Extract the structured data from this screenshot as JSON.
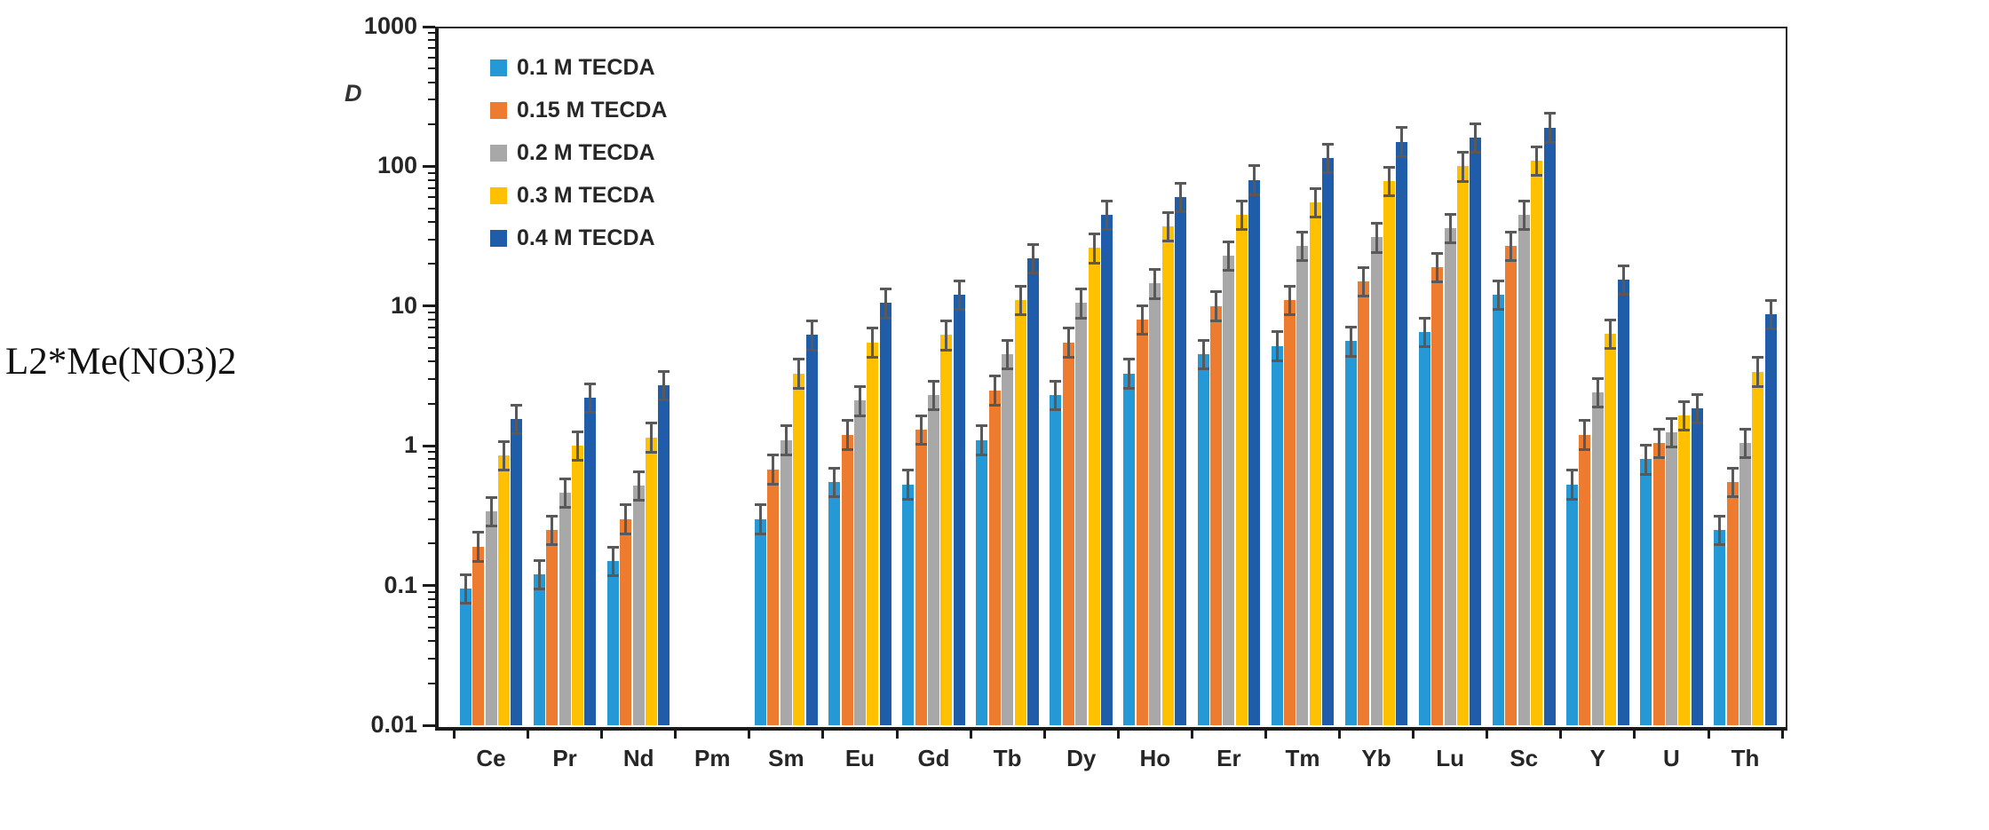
{
  "figure_label": "L2*Me(NO3)2",
  "chart_data": {
    "type": "bar",
    "scale": "log",
    "title": "",
    "y_axis_label": "D",
    "xlabel": "",
    "ylim": [
      0.01,
      1000
    ],
    "y_tick_labels": [
      "1000",
      "100",
      "10",
      "1",
      "0.1",
      "0.01"
    ],
    "grid": "off",
    "legend_position": "top-left-inside",
    "categories": [
      "Ce",
      "Pr",
      "Nd",
      "Pm",
      "Sm",
      "Eu",
      "Gd",
      "Tb",
      "Dy",
      "Ho",
      "Er",
      "Tm",
      "Yb",
      "Lu",
      "Sc",
      "Y",
      "U",
      "Th"
    ],
    "series": [
      {
        "name": "0.1 M TECDA",
        "color": "#2499D6",
        "values": [
          0.095,
          0.12,
          0.15,
          null,
          0.3,
          0.55,
          0.53,
          1.1,
          2.3,
          3.3,
          4.5,
          5.2,
          5.6,
          6.5,
          12,
          0.53,
          0.8,
          0.25
        ]
      },
      {
        "name": "0.15 M TECDA",
        "color": "#ED7C31",
        "values": [
          0.19,
          0.25,
          0.3,
          null,
          0.68,
          1.2,
          1.3,
          2.5,
          5.5,
          8.0,
          10,
          11,
          15,
          19,
          27,
          1.2,
          1.05,
          0.55
        ]
      },
      {
        "name": "0.2 M TECDA",
        "color": "#A8A8A8",
        "values": [
          0.34,
          0.46,
          0.52,
          null,
          1.1,
          2.1,
          2.3,
          4.5,
          10.5,
          14.5,
          23,
          27,
          31,
          36,
          45,
          2.4,
          1.25,
          1.05
        ]
      },
      {
        "name": "0.3 M TECDA",
        "color": "#FFC000",
        "values": [
          0.85,
          1.0,
          1.15,
          null,
          3.3,
          5.5,
          6.2,
          11,
          26,
          37,
          45,
          55,
          78,
          100,
          110,
          6.3,
          1.65,
          3.4
        ]
      },
      {
        "name": "0.4 M TECDA",
        "color": "#1F5CA9",
        "values": [
          1.55,
          2.2,
          2.7,
          null,
          6.2,
          10.5,
          12,
          22,
          45,
          60,
          80,
          115,
          150,
          160,
          190,
          15.5,
          1.85,
          8.7
        ]
      }
    ],
    "error_bars": {
      "upper_factor": 1.27,
      "lower_factor": 0.79,
      "color": "#595959"
    }
  }
}
